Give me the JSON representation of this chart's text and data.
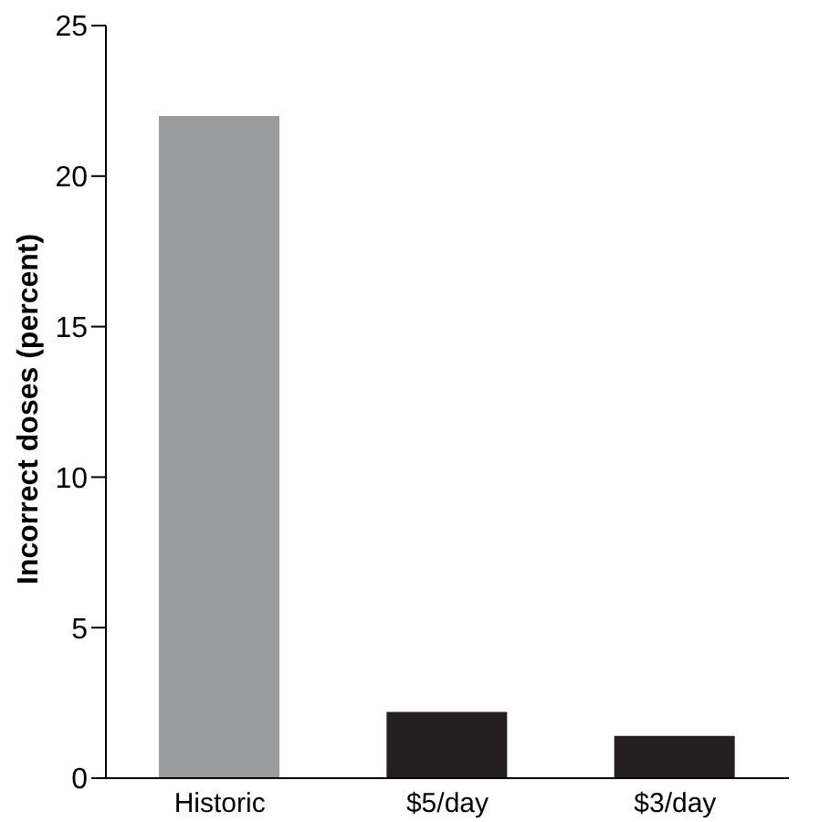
{
  "chart_data": {
    "type": "bar",
    "ylabel": "Incorrect doses (percent)",
    "categories": [
      "Historic",
      "$5/day",
      "$3/day"
    ],
    "values": [
      22,
      2.2,
      1.4
    ],
    "colors": [
      "#9a9b9d",
      "#231f20",
      "#231f20"
    ],
    "ylim": [
      0,
      25
    ],
    "yticks": [
      0,
      5,
      10,
      15,
      20,
      25
    ],
    "grid": false,
    "legend": false
  }
}
